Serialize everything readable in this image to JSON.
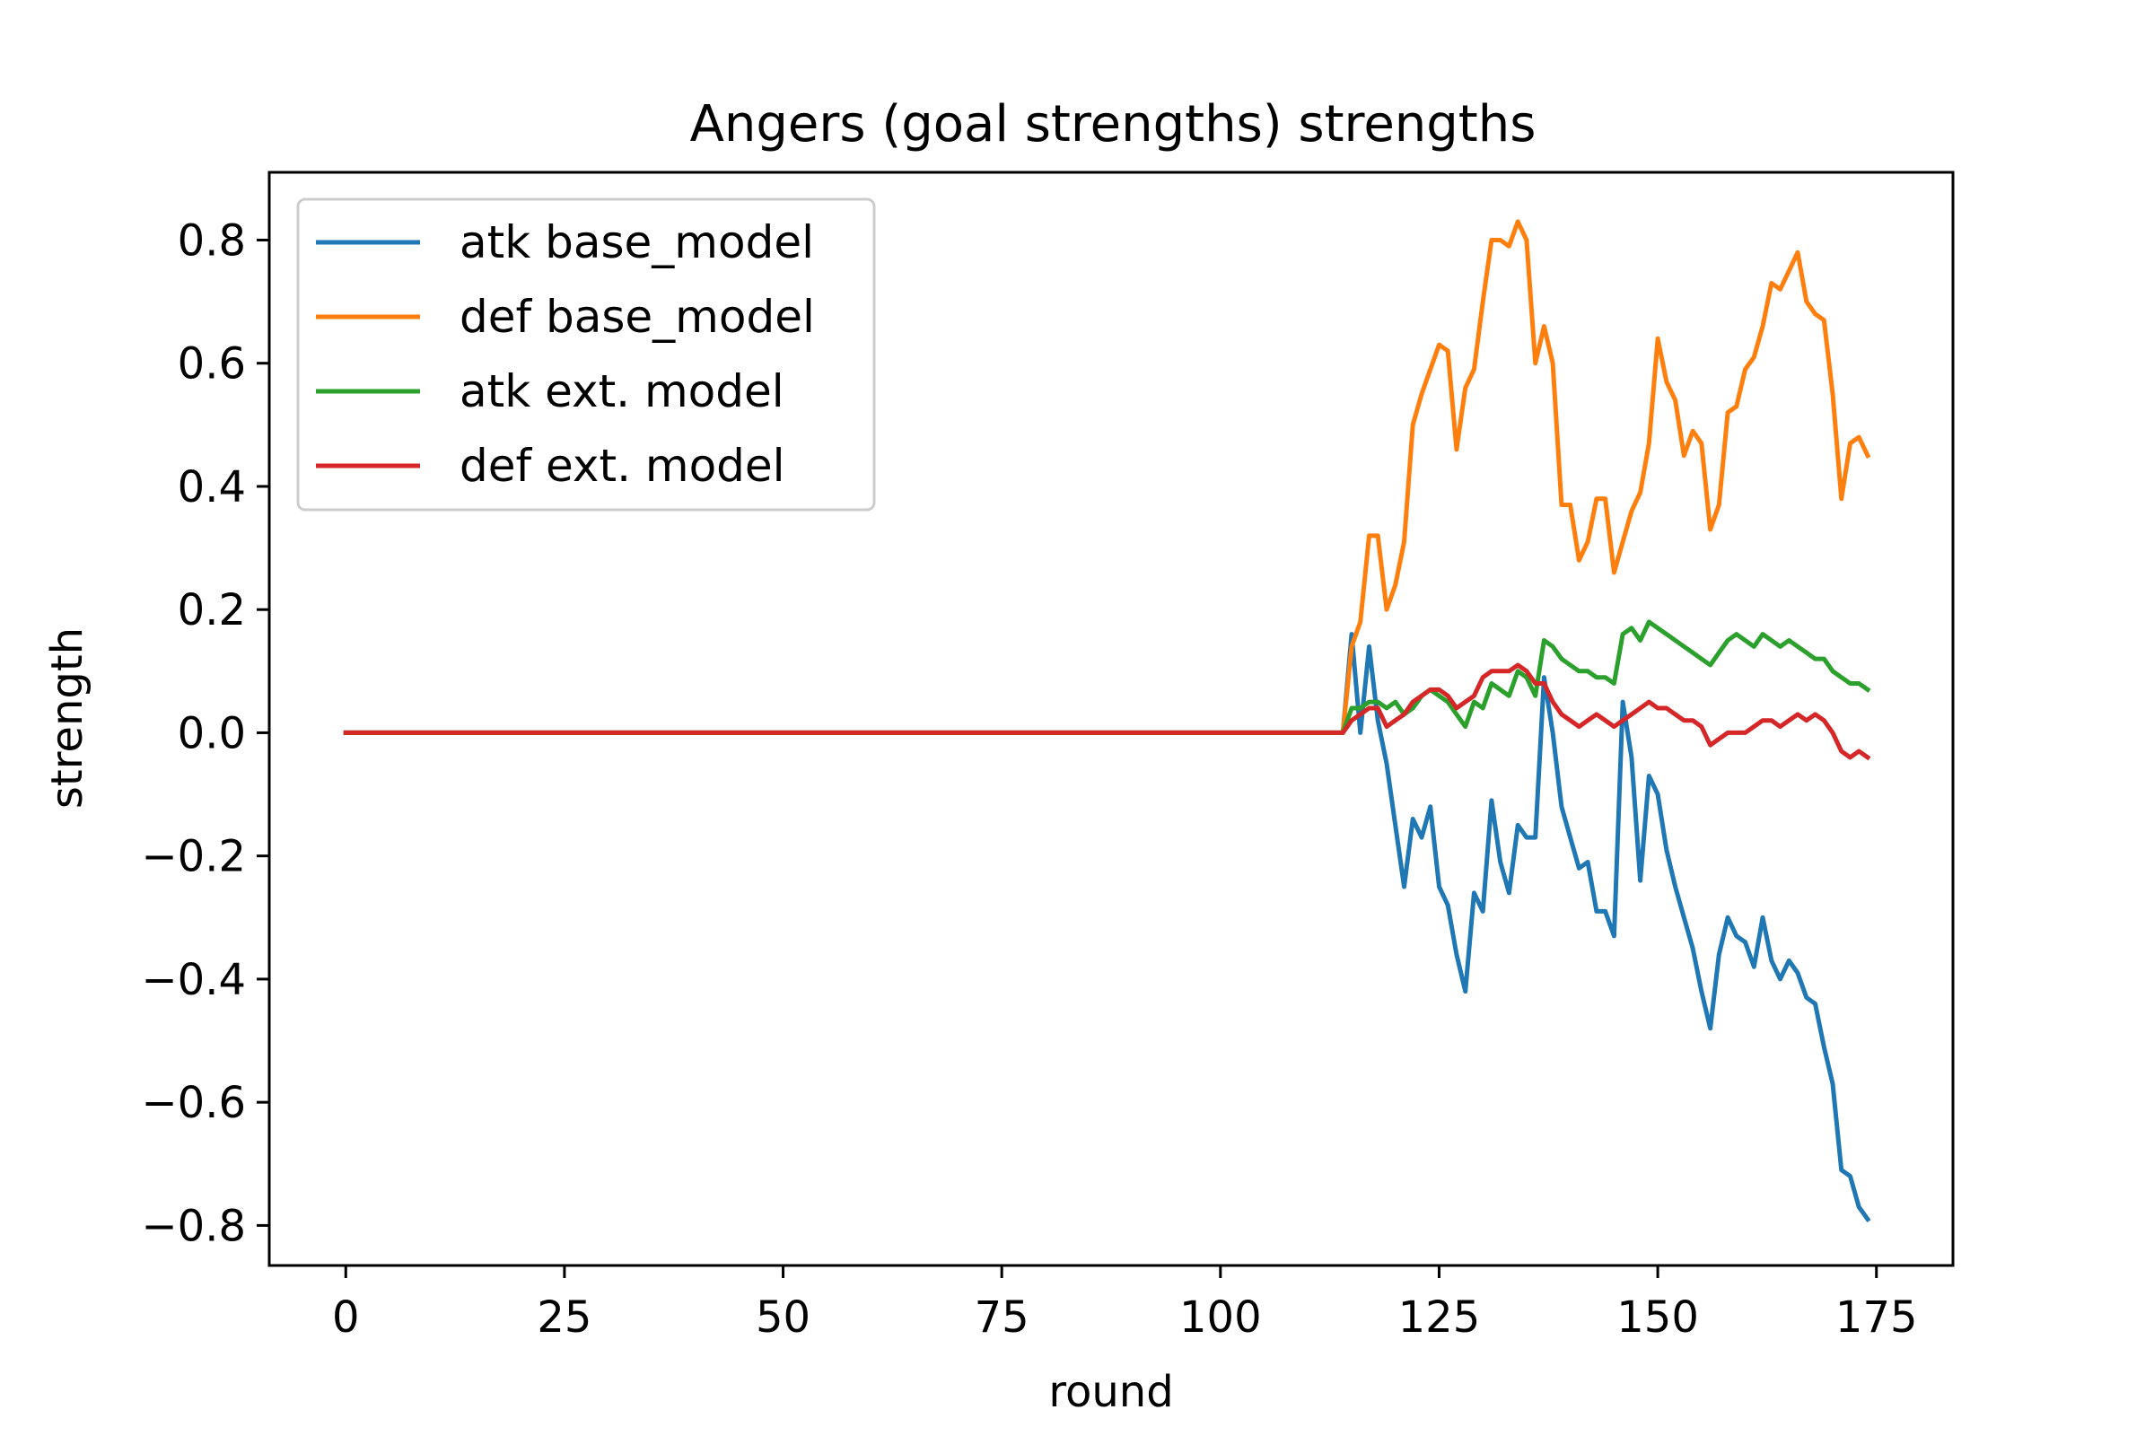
{
  "chart_data": {
    "type": "line",
    "title": "Angers (goal strengths) strengths",
    "xlabel": "round",
    "ylabel": "strength",
    "xlim": [
      -8.75,
      183.75
    ],
    "ylim": [
      -0.865,
      0.91
    ],
    "xticks": [
      0,
      25,
      50,
      75,
      100,
      125,
      150,
      175
    ],
    "xtick_labels": [
      "0",
      "25",
      "50",
      "75",
      "100",
      "125",
      "150",
      "175"
    ],
    "yticks": [
      0.8,
      0.6,
      0.4,
      0.2,
      0.0,
      -0.2,
      -0.4,
      -0.6,
      -0.8
    ],
    "ytick_labels": [
      "0.8",
      "0.6",
      "0.4",
      "0.2",
      "0.0",
      "−0.2",
      "−0.4",
      "−0.6",
      "−0.8"
    ],
    "grid": false,
    "legend_position": "top-left",
    "x_start": 114,
    "x_end": 175,
    "series": [
      {
        "name": "atk base_model",
        "color": "#1f77b4",
        "values": [
          0.0,
          0.16,
          0.0,
          0.14,
          0.02,
          -0.05,
          -0.15,
          -0.25,
          -0.14,
          -0.17,
          -0.12,
          -0.25,
          -0.28,
          -0.36,
          -0.42,
          -0.26,
          -0.29,
          -0.11,
          -0.21,
          -0.26,
          -0.15,
          -0.17,
          -0.17,
          0.09,
          0.0,
          -0.12,
          -0.17,
          -0.22,
          -0.21,
          -0.29,
          -0.29,
          -0.33,
          0.05,
          -0.04,
          -0.24,
          -0.07,
          -0.1,
          -0.19,
          -0.25,
          -0.3,
          -0.35,
          -0.42,
          -0.48,
          -0.36,
          -0.3,
          -0.33,
          -0.34,
          -0.38,
          -0.3,
          -0.37,
          -0.4,
          -0.37,
          -0.39,
          -0.43,
          -0.44,
          -0.51,
          -0.57,
          -0.71,
          -0.72,
          -0.77,
          -0.79
        ]
      },
      {
        "name": "def base_model",
        "color": "#ff7f0e",
        "values": [
          0.0,
          0.14,
          0.18,
          0.32,
          0.32,
          0.2,
          0.24,
          0.31,
          0.5,
          0.55,
          0.59,
          0.63,
          0.62,
          0.46,
          0.56,
          0.59,
          0.7,
          0.8,
          0.8,
          0.79,
          0.83,
          0.8,
          0.6,
          0.66,
          0.6,
          0.37,
          0.37,
          0.28,
          0.31,
          0.38,
          0.38,
          0.26,
          0.31,
          0.36,
          0.39,
          0.47,
          0.64,
          0.57,
          0.54,
          0.45,
          0.49,
          0.47,
          0.33,
          0.37,
          0.52,
          0.53,
          0.59,
          0.61,
          0.66,
          0.73,
          0.72,
          0.75,
          0.78,
          0.7,
          0.68,
          0.67,
          0.55,
          0.38,
          0.47,
          0.48,
          0.45
        ]
      },
      {
        "name": "atk ext. model",
        "color": "#2ca02c",
        "values": [
          0.0,
          0.04,
          0.04,
          0.05,
          0.05,
          0.04,
          0.05,
          0.03,
          0.04,
          0.06,
          0.07,
          0.06,
          0.05,
          0.03,
          0.01,
          0.05,
          0.04,
          0.08,
          0.07,
          0.06,
          0.1,
          0.09,
          0.06,
          0.15,
          0.14,
          0.12,
          0.11,
          0.1,
          0.1,
          0.09,
          0.09,
          0.08,
          0.16,
          0.17,
          0.15,
          0.18,
          0.17,
          0.16,
          0.15,
          0.14,
          0.13,
          0.12,
          0.11,
          0.13,
          0.15,
          0.16,
          0.15,
          0.14,
          0.16,
          0.15,
          0.14,
          0.15,
          0.14,
          0.13,
          0.12,
          0.12,
          0.1,
          0.09,
          0.08,
          0.08,
          0.07
        ]
      },
      {
        "name": "def ext. model",
        "color": "#d62728",
        "values": [
          0.0,
          0.02,
          0.03,
          0.04,
          0.04,
          0.01,
          0.02,
          0.03,
          0.05,
          0.06,
          0.07,
          0.07,
          0.06,
          0.04,
          0.05,
          0.06,
          0.09,
          0.1,
          0.1,
          0.1,
          0.11,
          0.1,
          0.08,
          0.08,
          0.05,
          0.03,
          0.02,
          0.01,
          0.02,
          0.03,
          0.02,
          0.01,
          0.02,
          0.03,
          0.04,
          0.05,
          0.04,
          0.04,
          0.03,
          0.02,
          0.02,
          0.01,
          -0.02,
          -0.01,
          0.0,
          0.0,
          0.0,
          0.01,
          0.02,
          0.02,
          0.01,
          0.02,
          0.03,
          0.02,
          0.03,
          0.02,
          0.0,
          -0.03,
          -0.04,
          -0.03,
          -0.04
        ]
      }
    ]
  }
}
